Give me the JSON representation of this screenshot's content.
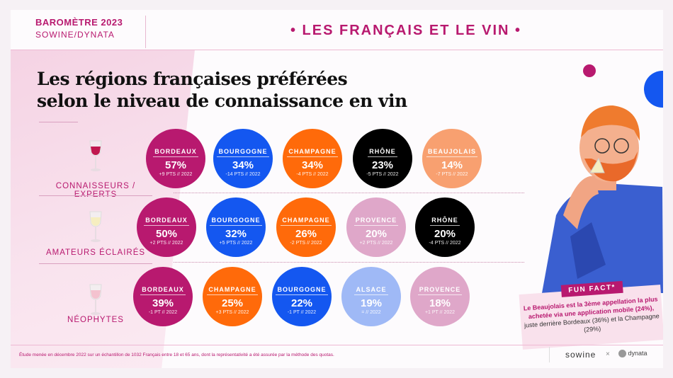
{
  "header": {
    "barometre": "BAROMÈTRE 2023",
    "source": "SOWINE/DYNATA",
    "title": "• LES FRANÇAIS ET LE VIN •"
  },
  "title": {
    "line1": "Les régions françaises préférées",
    "line2": "selon le niveau de connaissance en vin"
  },
  "colors": {
    "accent": "#b8196f",
    "bordeaux": "#b8196f",
    "bourgogne": "#1457f0",
    "champagne": "#ff6a0a",
    "rhone": "#000000",
    "beaujolais": "#f8a070",
    "provence": "#dfa7c9",
    "alsace": "#9fb9f6"
  },
  "rows": [
    {
      "label": "CONNAISSEURS / EXPERTS",
      "items": [
        {
          "name": "BORDEAUX",
          "pct": "57%",
          "change": "+9 PTS // 2022",
          "color": "#b8196f"
        },
        {
          "name": "BOURGOGNE",
          "pct": "34%",
          "change": "-14 PTS // 2022",
          "color": "#1457f0"
        },
        {
          "name": "CHAMPAGNE",
          "pct": "34%",
          "change": "-4 PTS // 2022",
          "color": "#ff6a0a"
        },
        {
          "name": "RHÔNE",
          "pct": "23%",
          "change": "-5 PTS // 2022",
          "color": "#000000"
        },
        {
          "name": "BEAUJOLAIS",
          "pct": "14%",
          "change": "-7 PTS // 2022",
          "color": "#f8a070"
        }
      ]
    },
    {
      "label": "AMATEURS ÉCLAIRÉS",
      "items": [
        {
          "name": "BORDEAUX",
          "pct": "50%",
          "change": "+2 PTS // 2022",
          "color": "#b8196f"
        },
        {
          "name": "BOURGOGNE",
          "pct": "32%",
          "change": "+5 PTS // 2022",
          "color": "#1457f0"
        },
        {
          "name": "CHAMPAGNE",
          "pct": "26%",
          "change": "-2 PTS // 2022",
          "color": "#ff6a0a"
        },
        {
          "name": "PROVENCE",
          "pct": "20%",
          "change": "+2 PTS // 2022",
          "color": "#dfa7c9"
        },
        {
          "name": "RHÔNE",
          "pct": "20%",
          "change": "-4 PTS // 2022",
          "color": "#000000"
        }
      ]
    },
    {
      "label": "NÉOPHYTES",
      "items": [
        {
          "name": "BORDEAUX",
          "pct": "39%",
          "change": "-1 PT // 2022",
          "color": "#b8196f"
        },
        {
          "name": "CHAMPAGNE",
          "pct": "25%",
          "change": "+3 PTS // 2022",
          "color": "#ff6a0a"
        },
        {
          "name": "BOURGOGNE",
          "pct": "22%",
          "change": "-1 PT // 2022",
          "color": "#1457f0"
        },
        {
          "name": "ALSACE",
          "pct": "19%",
          "change": "= // 2022",
          "color": "#9fb9f6"
        },
        {
          "name": "PROVENCE",
          "pct": "18%",
          "change": "+1 PT // 2022",
          "color": "#dfa7c9"
        }
      ]
    }
  ],
  "funfact": {
    "tag": "FUN FACT*",
    "highlight": "Le Beaujolais est la 3ème appellation la plus achetée via une application mobile (24%),",
    "text": "juste derrière Bordeaux (36%) et la Champagne (29%)"
  },
  "footer": {
    "note": "Étude menée en décembre 2022 sur un échantillon de 1032 Français entre 18 et 65 ans, dont la représentativité a été assurée par la méthode des quotas.",
    "logo1": "sowine",
    "sep": "×",
    "logo2": "dynata"
  }
}
